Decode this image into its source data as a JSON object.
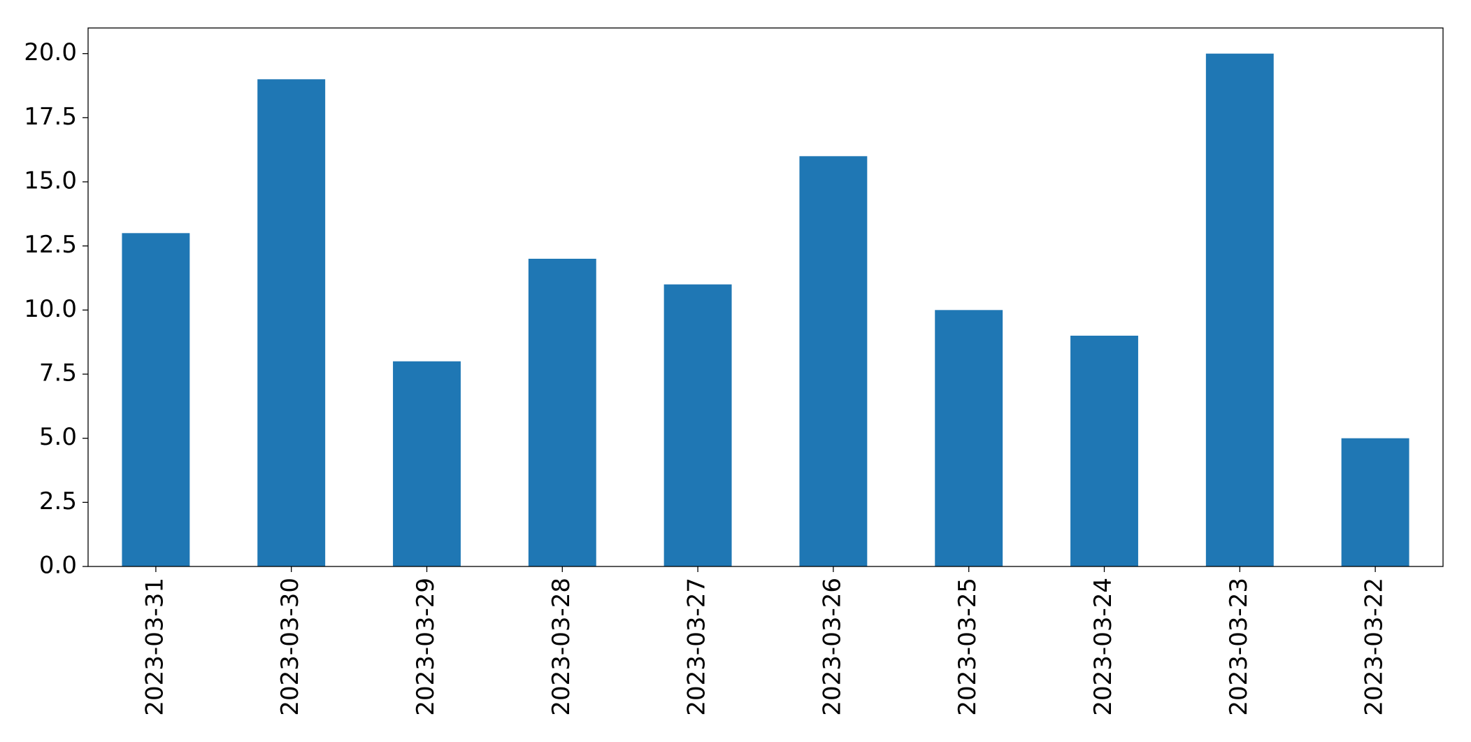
{
  "chart_data": {
    "type": "bar",
    "categories": [
      "2023-03-31",
      "2023-03-30",
      "2023-03-29",
      "2023-03-28",
      "2023-03-27",
      "2023-03-26",
      "2023-03-25",
      "2023-03-24",
      "2023-03-23",
      "2023-03-22"
    ],
    "values": [
      13,
      19,
      8,
      12,
      11,
      16,
      10,
      9,
      20,
      5
    ],
    "color": "#1f77b4",
    "ylim": [
      0,
      21
    ],
    "yticks": [
      {
        "value": 0,
        "label": "0.0"
      },
      2.5,
      {
        "value": 5,
        "label": "5.0"
      },
      7.5,
      {
        "value": 10,
        "label": "10.0"
      },
      12.5,
      {
        "value": 15,
        "label": "15.0"
      },
      17.5,
      {
        "value": 20,
        "label": "20.0"
      }
    ],
    "grid": false
  }
}
